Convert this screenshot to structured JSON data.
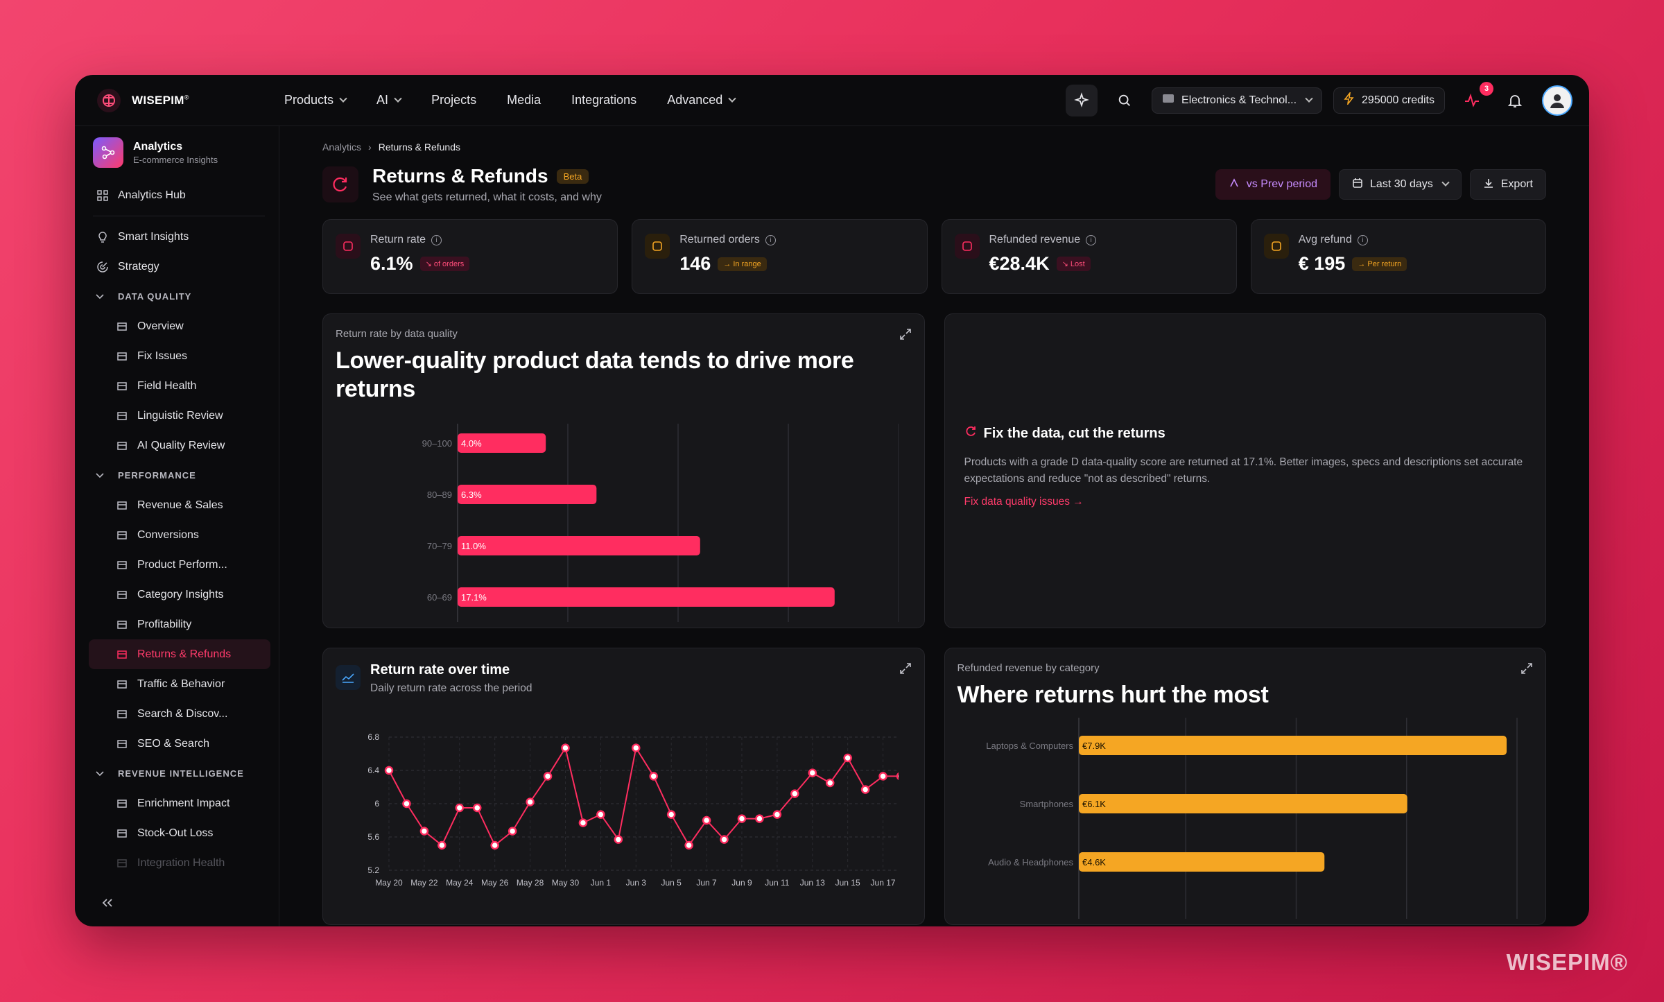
{
  "brand": {
    "name": "WISEPIM",
    "reg": "®"
  },
  "watermark": "WISEPIM®",
  "nav": [
    {
      "label": "Products",
      "dropdown": true
    },
    {
      "label": "AI",
      "dropdown": true
    },
    {
      "label": "Projects",
      "dropdown": false
    },
    {
      "label": "Media",
      "dropdown": false
    },
    {
      "label": "Integrations",
      "dropdown": false
    },
    {
      "label": "Advanced",
      "dropdown": true
    }
  ],
  "topbar": {
    "workspace": "Electronics & Technol...",
    "credits": "295000 credits",
    "notif_count": "3"
  },
  "sidebar": {
    "title": "Analytics",
    "subtitle": "E-commerce Insights",
    "hub": "Analytics Hub",
    "items_top": [
      "Smart Insights",
      "Strategy"
    ],
    "sections": [
      {
        "label": "DATA QUALITY",
        "items": [
          "Overview",
          "Fix Issues",
          "Field Health",
          "Linguistic Review",
          "AI Quality Review"
        ]
      },
      {
        "label": "PERFORMANCE",
        "items": [
          "Revenue & Sales",
          "Conversions",
          "Product Perform...",
          "Category Insights",
          "Profitability",
          "Returns & Refunds",
          "Traffic & Behavior",
          "Search & Discov...",
          "SEO & Search"
        ]
      },
      {
        "label": "REVENUE INTELLIGENCE",
        "items": [
          "Enrichment Impact",
          "Stock-Out Loss",
          "Integration Health"
        ]
      }
    ],
    "active": "Returns & Refunds"
  },
  "breadcrumb": {
    "parent": "Analytics",
    "current": "Returns & Refunds"
  },
  "page": {
    "title": "Returns & Refunds",
    "badge": "Beta",
    "subtitle": "See what gets returned, what it costs, and why",
    "compare_label": "vs Prev period",
    "range_label": "Last 30 days",
    "export_label": "Export"
  },
  "kpis": [
    {
      "label": "Return rate",
      "value": "6.1%",
      "tag": "↘ of orders",
      "tone": "red"
    },
    {
      "label": "Returned orders",
      "value": "146",
      "tag": "→ In range",
      "tone": "amber"
    },
    {
      "label": "Refunded revenue",
      "value": "€28.4K",
      "tag": "↘ Lost",
      "tone": "red"
    },
    {
      "label": "Avg refund",
      "value": "€ 195",
      "tag": "→ Per return",
      "tone": "amber"
    }
  ],
  "quality_card": {
    "kicker": "Return rate by data quality",
    "title": "Lower-quality product data tends to drive more returns"
  },
  "insight": {
    "title": "Fix the data, cut the returns",
    "body": "Products with a grade D data-quality score are returned at 17.1%. Better images, specs and descriptions set accurate expectations and reduce \"not as described\" returns.",
    "link": "Fix data quality issues →"
  },
  "time_card": {
    "title": "Return rate over time",
    "subtitle": "Daily return rate across the period"
  },
  "category_card": {
    "kicker": "Refunded revenue by category",
    "title": "Where returns hurt the most"
  },
  "chart_data": [
    {
      "type": "bar",
      "orientation": "horizontal",
      "categories": [
        "90–100",
        "80–89",
        "70–79",
        "60–69"
      ],
      "values": [
        4.0,
        6.3,
        11.0,
        17.1
      ],
      "labels": [
        "4.0%",
        "6.3%",
        "11.0%",
        "17.1%"
      ],
      "xlim": [
        0,
        20
      ],
      "grid": true,
      "color": "#ff2d60"
    },
    {
      "type": "line",
      "x_ticks": [
        "May 20",
        "May 22",
        "May 24",
        "May 26",
        "May 28",
        "May 30",
        "Jun 1",
        "Jun 3",
        "Jun 5",
        "Jun 7",
        "Jun 9",
        "Jun 11",
        "Jun 13",
        "Jun 15",
        "Jun 17"
      ],
      "y_ticks": [
        "6.8",
        "6.4",
        "6",
        "5.6",
        "5.2"
      ],
      "ylim": [
        5.2,
        6.8
      ],
      "values": [
        6.4,
        6.0,
        5.67,
        5.5,
        5.95,
        5.95,
        5.5,
        5.67,
        6.02,
        6.33,
        6.67,
        5.77,
        5.87,
        5.57,
        6.67,
        6.33,
        5.87,
        5.5,
        5.8,
        5.57,
        5.82,
        5.82,
        5.87,
        6.12,
        6.37,
        6.25,
        6.55,
        6.17,
        6.33,
        6.33
      ],
      "grid": true,
      "color": "#ff2d60"
    },
    {
      "type": "bar",
      "orientation": "horizontal",
      "categories": [
        "Laptops & Computers",
        "Smartphones",
        "Audio & Headphones"
      ],
      "values": [
        7.9,
        6.1,
        4.6
      ],
      "labels": [
        "€7.9K",
        "€6.1K",
        "€4.6K"
      ],
      "xlim": [
        0,
        8
      ],
      "grid": true,
      "color": "#f5a623"
    }
  ]
}
